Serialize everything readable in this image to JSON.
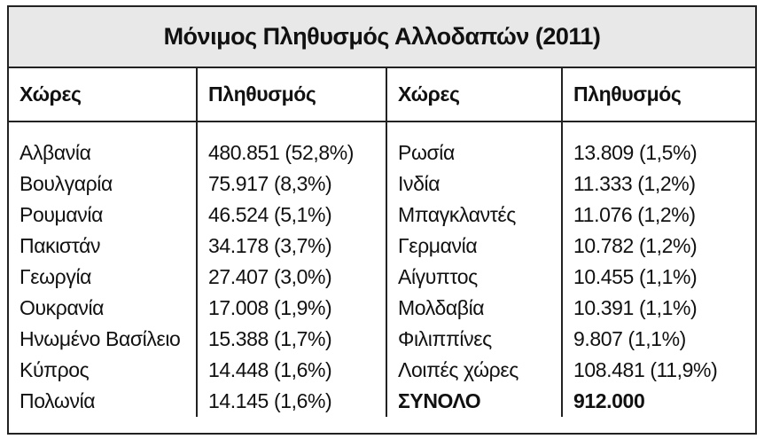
{
  "table": {
    "title": "Μόνιμος Πληθυσμός Αλλοδαπών (2011)",
    "headers": [
      "Χώρες",
      "Πληθυσμός",
      "Χώρες",
      "Πληθυσμός"
    ],
    "rows": [
      [
        "Αλβανία",
        "480.851 (52,8%)",
        "Ρωσία",
        "13.809 (1,5%)"
      ],
      [
        "Βουλγαρία",
        "75.917 (8,3%)",
        "Ινδία",
        "11.333 (1,2%)"
      ],
      [
        "Ρουμανία",
        "46.524 (5,1%)",
        "Μπαγκλαντές",
        "11.076 (1,2%)"
      ],
      [
        "Πακιστάν",
        "34.178 (3,7%)",
        "Γερμανία",
        "10.782 (1,2%)"
      ],
      [
        "Γεωργία",
        "27.407 (3,0%)",
        "Αίγυπτος",
        "10.455 (1,1%)"
      ],
      [
        "Ουκρανία",
        "17.008 (1,9%)",
        "Μολδαβία",
        "10.391 (1,1%)"
      ],
      [
        "Ηνωμένο Βασίλειο",
        "15.388 (1,7%)",
        "Φιλιππίνες",
        "9.807 (1,1%)"
      ],
      [
        "Κύπρος",
        "14.448 (1,6%)",
        "Λοιπές χώρες",
        "108.481 (11,9%)"
      ],
      [
        "Πολωνία",
        "14.145 (1,6%)",
        "ΣΥΝΟΛΟ",
        "912.000"
      ]
    ]
  }
}
